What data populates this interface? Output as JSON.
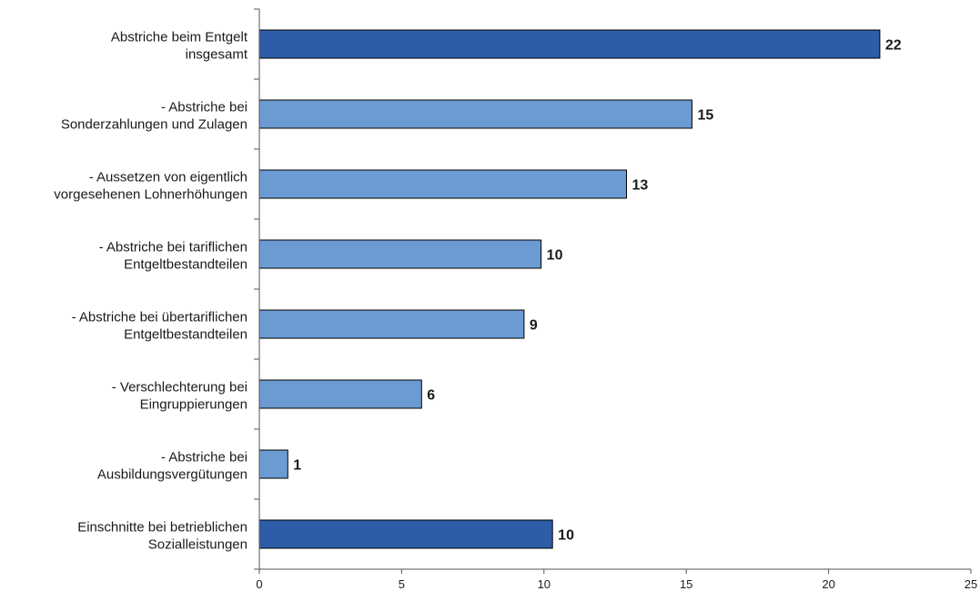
{
  "chart_data": {
    "type": "bar",
    "orientation": "horizontal",
    "categories": [
      [
        "Abstriche beim Entgelt",
        "insgesamt"
      ],
      [
        "- Abstriche bei",
        "Sonderzahlungen und Zulagen"
      ],
      [
        "- Aussetzen von eigentlich",
        "vorgesehenen Lohnerhöhungen"
      ],
      [
        "- Abstriche bei tariflichen",
        "Entgeltbestandteilen"
      ],
      [
        "- Abstriche bei übertariflichen",
        "Entgeltbestandteilen"
      ],
      [
        "- Verschlechterung bei",
        "Eingruppierungen"
      ],
      [
        "- Abstriche bei",
        "Ausbildungsvergütungen"
      ],
      [
        "Einschnitte bei betrieblichen",
        "Sozialleistungen"
      ]
    ],
    "values": [
      21.8,
      15.2,
      12.9,
      9.9,
      9.3,
      5.7,
      1.0,
      10.3
    ],
    "data_labels": [
      "22",
      "15",
      "13",
      "10",
      "9",
      "6",
      "1",
      "10"
    ],
    "bar_colors": [
      "#2e5da8",
      "#6b9bd2",
      "#6b9bd2",
      "#6b9bd2",
      "#6b9bd2",
      "#6b9bd2",
      "#6b9bd2",
      "#2e5da8"
    ],
    "xlim": [
      0,
      25
    ],
    "xticks": [
      0,
      5,
      10,
      15,
      20,
      25
    ],
    "grid": false,
    "legend": "none",
    "title": "",
    "xlabel": "",
    "ylabel": ""
  }
}
